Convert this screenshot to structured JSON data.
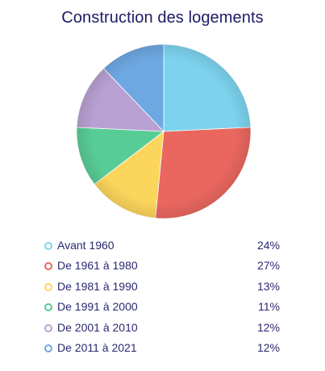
{
  "chart_data": {
    "type": "pie",
    "title": "Construction des logements",
    "categories": [
      "Avant 1960",
      "De 1961 à 1980",
      "De 1981 à 1990",
      "De 1991 à 2000",
      "De 2001 à 2010",
      "De 2011 à 2021"
    ],
    "values": [
      24,
      27,
      13,
      11,
      12,
      12
    ],
    "value_labels": [
      "24%",
      "27%",
      "13%",
      "11%",
      "12%",
      "12%"
    ],
    "colors": [
      "#7dd3ee",
      "#e9675f",
      "#fcd55c",
      "#58cc95",
      "#b9a0d2",
      "#6ea8e2"
    ],
    "legend_position": "bottom"
  }
}
